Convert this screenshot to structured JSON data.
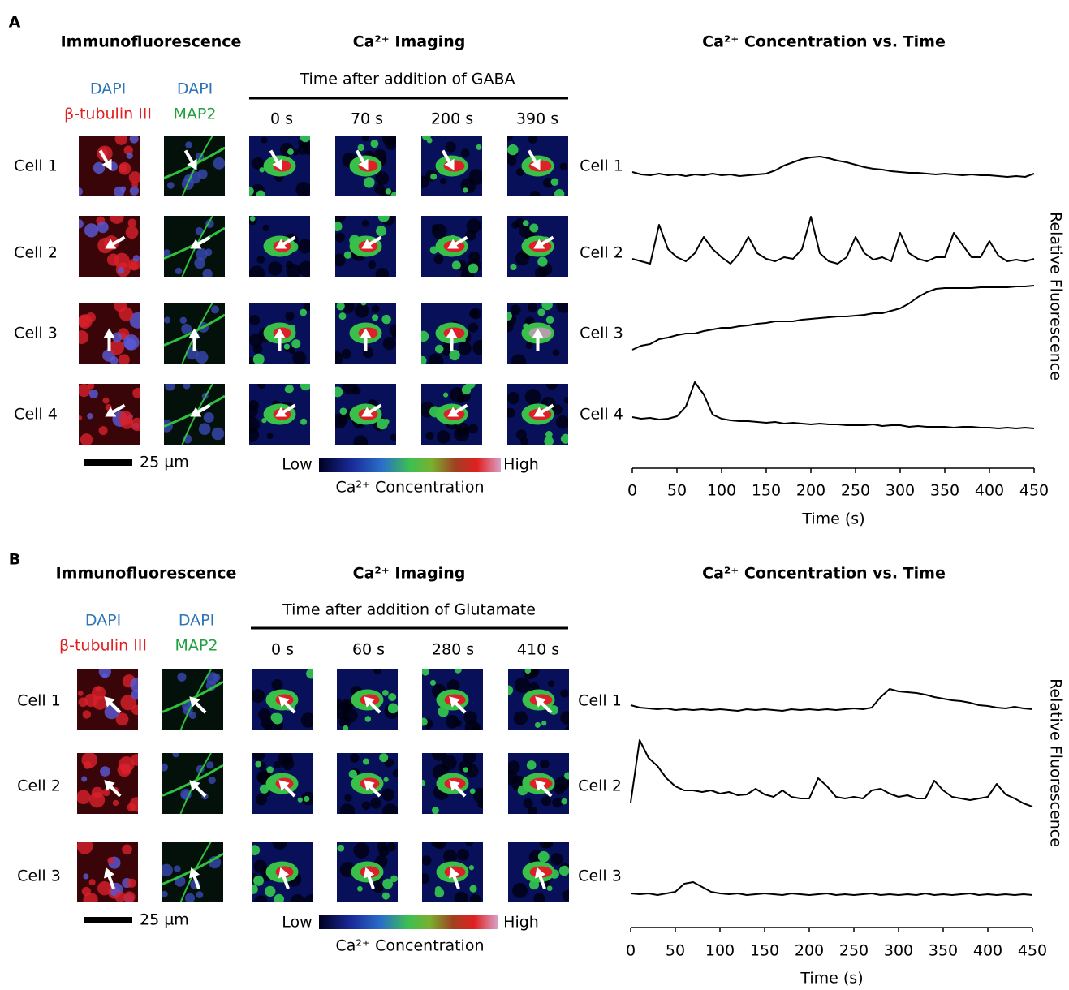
{
  "panels": [
    {
      "label": "A",
      "if_title": "Immunofluorescence",
      "ca_title": "Ca²⁺ Imaging",
      "stain1": [
        "DAPI",
        "β-tubulin III"
      ],
      "stain2": [
        "DAPI",
        "MAP2"
      ],
      "subtitle": "Time after addition of GABA",
      "times": [
        "0 s",
        "70 s",
        "200 s",
        "390 s"
      ],
      "cells": [
        "Cell 1",
        "Cell 2",
        "Cell 3",
        "Cell 4"
      ],
      "scale": "25 µm",
      "colorbar": {
        "low": "Low",
        "high": "High",
        "label": "Ca²⁺ Concentration"
      }
    },
    {
      "label": "B",
      "if_title": "Immunofluorescence",
      "ca_title": "Ca²⁺ Imaging",
      "stain1": [
        "DAPI",
        "β-tubulin III"
      ],
      "stain2": [
        "DAPI",
        "MAP2"
      ],
      "subtitle": "Time after addition of Glutamate",
      "times": [
        "0 s",
        "60 s",
        "280 s",
        "410 s"
      ],
      "cells": [
        "Cell 1",
        "Cell 2",
        "Cell 3"
      ],
      "scale": "25 µm",
      "colorbar": {
        "low": "Low",
        "high": "High",
        "label": "Ca²⁺ Concentration"
      }
    }
  ],
  "chart_data": [
    {
      "type": "line",
      "title": "Ca²⁺ Concentration vs. Time",
      "xlabel": "Time (s)",
      "ylabel": "Relative Fluorescence",
      "xlim": [
        0,
        450
      ],
      "xticks": [
        0,
        50,
        100,
        150,
        200,
        250,
        300,
        350,
        400,
        450
      ],
      "ylim": [
        0,
        1
      ],
      "x": [
        0,
        10,
        20,
        30,
        40,
        50,
        60,
        70,
        80,
        90,
        100,
        110,
        120,
        130,
        140,
        150,
        160,
        170,
        180,
        190,
        200,
        210,
        220,
        230,
        240,
        250,
        260,
        270,
        280,
        290,
        300,
        310,
        320,
        330,
        340,
        350,
        360,
        370,
        380,
        390,
        400,
        410,
        420,
        430,
        440,
        450
      ],
      "series": [
        {
          "name": "Cell 1",
          "color": "#000000",
          "values": [
            0.28,
            0.25,
            0.24,
            0.26,
            0.24,
            0.25,
            0.23,
            0.25,
            0.24,
            0.26,
            0.24,
            0.25,
            0.23,
            0.24,
            0.25,
            0.26,
            0.3,
            0.36,
            0.4,
            0.44,
            0.46,
            0.47,
            0.45,
            0.42,
            0.4,
            0.37,
            0.34,
            0.32,
            0.31,
            0.29,
            0.28,
            0.27,
            0.27,
            0.26,
            0.25,
            0.26,
            0.25,
            0.24,
            0.25,
            0.24,
            0.24,
            0.23,
            0.22,
            0.23,
            0.22,
            0.26
          ]
        },
        {
          "name": "Cell 2",
          "color": "#000000",
          "values": [
            0.28,
            0.25,
            0.22,
            0.7,
            0.4,
            0.3,
            0.25,
            0.35,
            0.55,
            0.4,
            0.3,
            0.22,
            0.35,
            0.55,
            0.35,
            0.28,
            0.25,
            0.3,
            0.28,
            0.4,
            0.8,
            0.35,
            0.25,
            0.22,
            0.3,
            0.55,
            0.35,
            0.27,
            0.3,
            0.25,
            0.6,
            0.35,
            0.28,
            0.25,
            0.3,
            0.3,
            0.6,
            0.45,
            0.3,
            0.3,
            0.5,
            0.32,
            0.25,
            0.27,
            0.25,
            0.28
          ]
        },
        {
          "name": "Cell 3",
          "color": "#000000",
          "values": [
            0.15,
            0.2,
            0.22,
            0.28,
            0.3,
            0.33,
            0.35,
            0.35,
            0.38,
            0.4,
            0.42,
            0.42,
            0.44,
            0.45,
            0.47,
            0.48,
            0.5,
            0.5,
            0.5,
            0.52,
            0.53,
            0.54,
            0.55,
            0.56,
            0.56,
            0.57,
            0.58,
            0.6,
            0.6,
            0.63,
            0.66,
            0.72,
            0.8,
            0.86,
            0.9,
            0.91,
            0.91,
            0.91,
            0.91,
            0.92,
            0.92,
            0.92,
            0.92,
            0.93,
            0.93,
            0.94
          ]
        },
        {
          "name": "Cell 4",
          "color": "#000000",
          "values": [
            0.32,
            0.3,
            0.31,
            0.29,
            0.3,
            0.33,
            0.45,
            0.75,
            0.6,
            0.35,
            0.3,
            0.28,
            0.27,
            0.27,
            0.26,
            0.25,
            0.26,
            0.24,
            0.25,
            0.24,
            0.23,
            0.24,
            0.23,
            0.23,
            0.22,
            0.22,
            0.22,
            0.23,
            0.21,
            0.22,
            0.22,
            0.2,
            0.21,
            0.2,
            0.2,
            0.2,
            0.19,
            0.2,
            0.2,
            0.19,
            0.19,
            0.18,
            0.19,
            0.18,
            0.19,
            0.18
          ]
        }
      ]
    },
    {
      "type": "line",
      "title": "Ca²⁺ Concentration vs. Time",
      "xlabel": "Time (s)",
      "ylabel": "Relative Fluorescence",
      "xlim": [
        0,
        450
      ],
      "xticks": [
        0,
        50,
        100,
        150,
        200,
        250,
        300,
        350,
        400,
        450
      ],
      "ylim": [
        0,
        1
      ],
      "x": [
        0,
        10,
        20,
        30,
        40,
        50,
        60,
        70,
        80,
        90,
        100,
        110,
        120,
        130,
        140,
        150,
        160,
        170,
        180,
        190,
        200,
        210,
        220,
        230,
        240,
        250,
        260,
        270,
        280,
        290,
        300,
        310,
        320,
        330,
        340,
        350,
        360,
        370,
        380,
        390,
        400,
        410,
        420,
        430,
        440,
        450
      ],
      "series": [
        {
          "name": "Cell 1",
          "color": "#000000",
          "values": [
            0.3,
            0.27,
            0.26,
            0.25,
            0.26,
            0.24,
            0.25,
            0.24,
            0.25,
            0.24,
            0.25,
            0.24,
            0.23,
            0.25,
            0.24,
            0.25,
            0.24,
            0.23,
            0.25,
            0.24,
            0.25,
            0.24,
            0.25,
            0.24,
            0.25,
            0.26,
            0.25,
            0.27,
            0.4,
            0.5,
            0.47,
            0.46,
            0.45,
            0.43,
            0.4,
            0.38,
            0.36,
            0.35,
            0.33,
            0.3,
            0.29,
            0.27,
            0.26,
            0.28,
            0.26,
            0.25
          ]
        },
        {
          "name": "Cell 2",
          "color": "#000000",
          "values": [
            0.15,
            0.92,
            0.7,
            0.6,
            0.45,
            0.35,
            0.3,
            0.3,
            0.28,
            0.3,
            0.26,
            0.28,
            0.24,
            0.25,
            0.32,
            0.25,
            0.22,
            0.3,
            0.22,
            0.2,
            0.2,
            0.45,
            0.35,
            0.22,
            0.2,
            0.22,
            0.2,
            0.3,
            0.32,
            0.26,
            0.22,
            0.24,
            0.2,
            0.2,
            0.42,
            0.3,
            0.22,
            0.2,
            0.18,
            0.2,
            0.22,
            0.38,
            0.25,
            0.2,
            0.14,
            0.1
          ]
        },
        {
          "name": "Cell 3",
          "color": "#000000",
          "values": [
            0.14,
            0.13,
            0.14,
            0.12,
            0.14,
            0.16,
            0.26,
            0.28,
            0.22,
            0.16,
            0.14,
            0.13,
            0.14,
            0.12,
            0.13,
            0.14,
            0.13,
            0.12,
            0.14,
            0.13,
            0.12,
            0.13,
            0.14,
            0.12,
            0.13,
            0.12,
            0.13,
            0.14,
            0.12,
            0.13,
            0.12,
            0.13,
            0.12,
            0.14,
            0.12,
            0.13,
            0.12,
            0.13,
            0.14,
            0.12,
            0.13,
            0.12,
            0.13,
            0.12,
            0.13,
            0.12
          ]
        }
      ]
    }
  ]
}
